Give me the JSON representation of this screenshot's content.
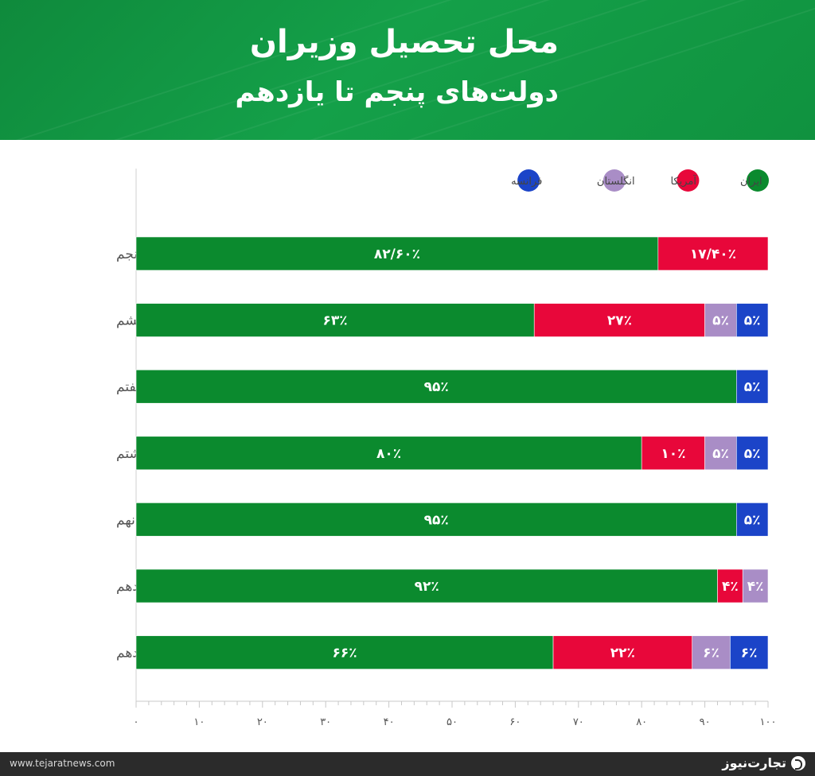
{
  "header": {
    "title": "محل تحصیل وزیران",
    "subtitle": "دولت‌های پنجم تا یازدهم"
  },
  "footer": {
    "website": "www.tejaratnews.com",
    "brand": "تجارت‌نیوز"
  },
  "colors": {
    "header_bg": "#14a049",
    "iran": "#0b8a2e",
    "america": "#e8073a",
    "england": "#a98dc6",
    "france": "#1b44c8",
    "footer_bg": "#2b2b2b"
  },
  "chart_data": {
    "type": "bar",
    "orientation": "horizontal",
    "stacked": true,
    "categories": [
      "دولت پنجم",
      "دولت ششم",
      "دولت هفتم",
      "دولت هشتم",
      "دولت نهم",
      "دولت دهم",
      "دولت یازدهم"
    ],
    "series": [
      {
        "name": "ایران",
        "color": "#0b8a2e",
        "values": [
          82.6,
          63,
          95,
          80,
          95,
          92,
          66
        ],
        "labels": [
          "۸۲/۶۰٪",
          "۶۳٪",
          "۹۵٪",
          "۸۰٪",
          "۹۵٪",
          "۹۲٪",
          "۶۶٪"
        ]
      },
      {
        "name": "آمریکا",
        "color": "#e8073a",
        "values": [
          17.4,
          27,
          0,
          10,
          0,
          4,
          22
        ],
        "labels": [
          "۱۷/۴۰٪",
          "۲۷٪",
          "",
          "۱۰٪",
          "",
          "۴٪",
          "۲۲٪"
        ]
      },
      {
        "name": "انگلستان",
        "color": "#a98dc6",
        "values": [
          0,
          5,
          0,
          5,
          0,
          4,
          6
        ],
        "labels": [
          "",
          "۵٪",
          "",
          "۵٪",
          "",
          "۴٪",
          "۶٪"
        ]
      },
      {
        "name": "فرانسه",
        "color": "#1b44c8",
        "values": [
          0,
          5,
          5,
          5,
          5,
          0,
          6
        ],
        "labels": [
          "",
          "۵٪",
          "۵٪",
          "۵٪",
          "۵٪",
          "",
          "۶٪"
        ]
      }
    ],
    "xlim": [
      0,
      100
    ],
    "xticks": [
      0,
      10,
      20,
      30,
      40,
      50,
      60,
      70,
      80,
      90,
      100
    ],
    "xtick_labels": [
      "۰",
      "۱۰",
      "۲۰",
      "۳۰",
      "۴۰",
      "۵۰",
      "۶۰",
      "۷۰",
      "۸۰",
      "۹۰",
      "۱۰۰"
    ],
    "legend_position": "top-right",
    "grid": false
  }
}
